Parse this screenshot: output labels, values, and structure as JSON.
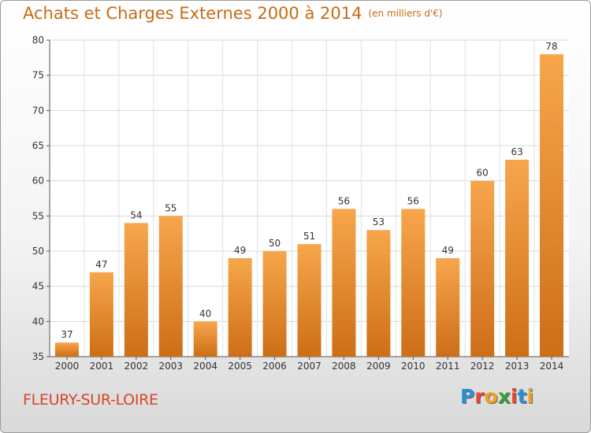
{
  "header": {
    "title": "Achats et Charges Externes 2000 à 2014",
    "subtitle": "(en milliers d'€)"
  },
  "footer": {
    "city": "FLEURY-SUR-LOIRE",
    "logo_letters": [
      {
        "ch": "P",
        "color": "#2a8fd4"
      },
      {
        "ch": "r",
        "color": "#e8452c"
      },
      {
        "ch": "o",
        "color": "#f0a020"
      },
      {
        "ch": "x",
        "color": "#3c9e3c"
      },
      {
        "ch": "i",
        "color": "#e8452c"
      },
      {
        "ch": "t",
        "color": "#2a8fd4"
      },
      {
        "ch": "i",
        "color": "#f0a020"
      }
    ]
  },
  "chart_data": {
    "type": "bar",
    "categories": [
      "2000",
      "2001",
      "2002",
      "2003",
      "2004",
      "2005",
      "2006",
      "2007",
      "2008",
      "2009",
      "2010",
      "2011",
      "2012",
      "2013",
      "2014"
    ],
    "values": [
      37,
      47,
      54,
      55,
      40,
      49,
      50,
      51,
      56,
      53,
      56,
      49,
      60,
      63,
      78
    ],
    "ylim": [
      35,
      80
    ],
    "yticks": [
      35,
      40,
      45,
      50,
      55,
      60,
      65,
      70,
      75,
      80
    ],
    "grid": true,
    "colors": {
      "bar_light": "#f7a64c",
      "bar_dark": "#cd6e18"
    }
  }
}
